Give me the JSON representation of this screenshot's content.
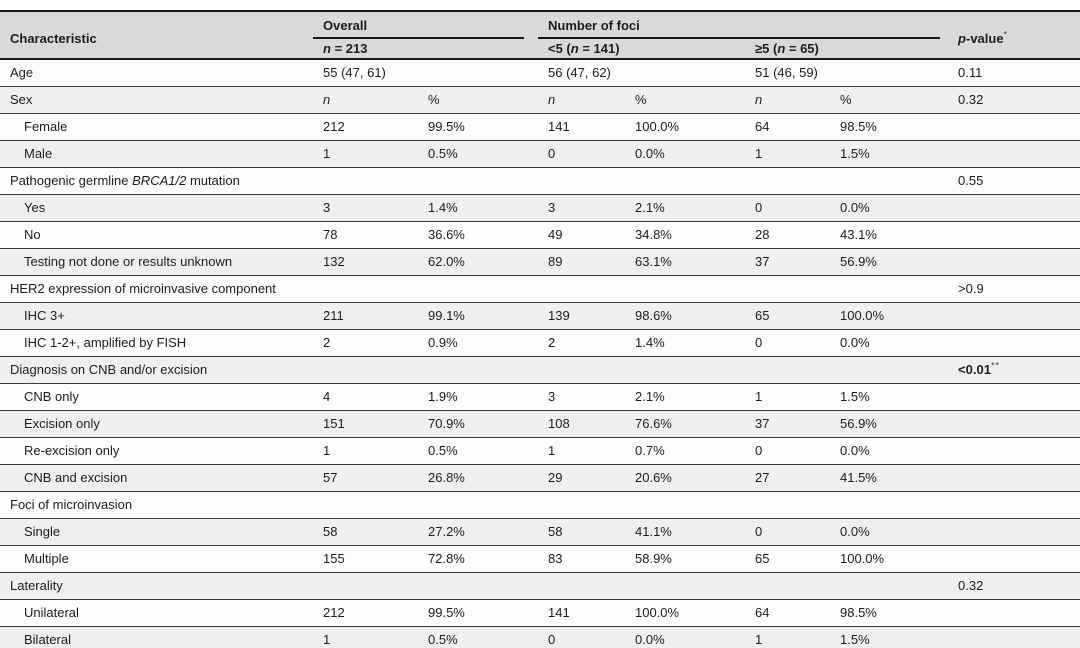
{
  "colors": {
    "header_bg": "#d9d9d9",
    "row_bg": "#fcfcfc",
    "row_alt_bg": "#efefef",
    "rule_thick": "#181818",
    "rule_thin": "#3e3e3e"
  },
  "header": {
    "characteristic": "Characteristic",
    "overall": {
      "label": "Overall",
      "sub_n": "n",
      "sub_rest": " = 213"
    },
    "foci": {
      "label": "Number of foci",
      "sub1_pre": "<5 (",
      "sub1_n": "n",
      "sub1_post": " = 141)",
      "sub2_pre": "≥5 (",
      "sub2_n": "n",
      "sub2_post": " = 65)"
    },
    "pvalue": {
      "italic": "p",
      "rest": "-value",
      "sup": "*"
    }
  },
  "subcols": {
    "n": "n",
    "pct": "%"
  },
  "rows": [
    {
      "label": "Age",
      "indent": false,
      "type": "span",
      "values": [
        "55 (47, 61)",
        "56 (47, 62)",
        "51 (46, 59)"
      ],
      "p": "0.11"
    },
    {
      "label": "Sex",
      "indent": false,
      "type": "subhead",
      "p": "0.32"
    },
    {
      "label": "Female",
      "indent": true,
      "type": "data",
      "values": [
        "212",
        "99.5%",
        "141",
        "100.0%",
        "64",
        "98.5%"
      ],
      "p": ""
    },
    {
      "label": "Male",
      "indent": true,
      "type": "data",
      "values": [
        "1",
        "0.5%",
        "0",
        "0.0%",
        "1",
        "1.5%"
      ],
      "p": ""
    },
    {
      "label_pre": "Pathogenic germline ",
      "label_italic": "BRCA1/2",
      "label_post": " mutation",
      "indent": false,
      "type": "empty",
      "p": "0.55"
    },
    {
      "label": "Yes",
      "indent": true,
      "type": "data",
      "values": [
        "3",
        "1.4%",
        "3",
        "2.1%",
        "0",
        "0.0%"
      ],
      "p": ""
    },
    {
      "label": "No",
      "indent": true,
      "type": "data",
      "values": [
        "78",
        "36.6%",
        "49",
        "34.8%",
        "28",
        "43.1%"
      ],
      "p": ""
    },
    {
      "label": "Testing not done or results unknown",
      "indent": true,
      "type": "data",
      "values": [
        "132",
        "62.0%",
        "89",
        "63.1%",
        "37",
        "56.9%"
      ],
      "p": ""
    },
    {
      "label": "HER2 expression of microinvasive component",
      "indent": false,
      "type": "empty",
      "p": ">0.9"
    },
    {
      "label": "IHC 3+",
      "indent": true,
      "type": "data",
      "values": [
        "211",
        "99.1%",
        "139",
        "98.6%",
        "65",
        "100.0%"
      ],
      "p": ""
    },
    {
      "label": "IHC 1-2+, amplified by FISH",
      "indent": true,
      "type": "data",
      "values": [
        "2",
        "0.9%",
        "2",
        "1.4%",
        "0",
        "0.0%"
      ],
      "p": ""
    },
    {
      "label": "Diagnosis on CNB and/or excision",
      "indent": false,
      "type": "empty",
      "p": "<0.01",
      "p_sup": "**",
      "p_bold": true
    },
    {
      "label": "CNB only",
      "indent": true,
      "type": "data",
      "values": [
        "4",
        "1.9%",
        "3",
        "2.1%",
        "1",
        "1.5%"
      ],
      "p": ""
    },
    {
      "label": "Excision only",
      "indent": true,
      "type": "data",
      "values": [
        "151",
        "70.9%",
        "108",
        "76.6%",
        "37",
        "56.9%"
      ],
      "p": ""
    },
    {
      "label": "Re-excision only",
      "indent": true,
      "type": "data",
      "values": [
        "1",
        "0.5%",
        "1",
        "0.7%",
        "0",
        "0.0%"
      ],
      "p": ""
    },
    {
      "label": "CNB and excision",
      "indent": true,
      "type": "data",
      "values": [
        "57",
        "26.8%",
        "29",
        "20.6%",
        "27",
        "41.5%"
      ],
      "p": ""
    },
    {
      "label": "Foci of microinvasion",
      "indent": false,
      "type": "empty",
      "p": ""
    },
    {
      "label": "Single",
      "indent": true,
      "type": "data",
      "values": [
        "58",
        "27.2%",
        "58",
        "41.1%",
        "0",
        "0.0%"
      ],
      "p": ""
    },
    {
      "label": "Multiple",
      "indent": true,
      "type": "data",
      "values": [
        "155",
        "72.8%",
        "83",
        "58.9%",
        "65",
        "100.0%"
      ],
      "p": ""
    },
    {
      "label": "Laterality",
      "indent": false,
      "type": "empty",
      "p": "0.32"
    },
    {
      "label": "Unilateral",
      "indent": true,
      "type": "data",
      "values": [
        "212",
        "99.5%",
        "141",
        "100.0%",
        "64",
        "98.5%"
      ],
      "p": ""
    },
    {
      "label": "Bilateral",
      "indent": true,
      "type": "data",
      "values": [
        "1",
        "0.5%",
        "0",
        "0.0%",
        "1",
        "1.5%"
      ],
      "p": ""
    }
  ]
}
